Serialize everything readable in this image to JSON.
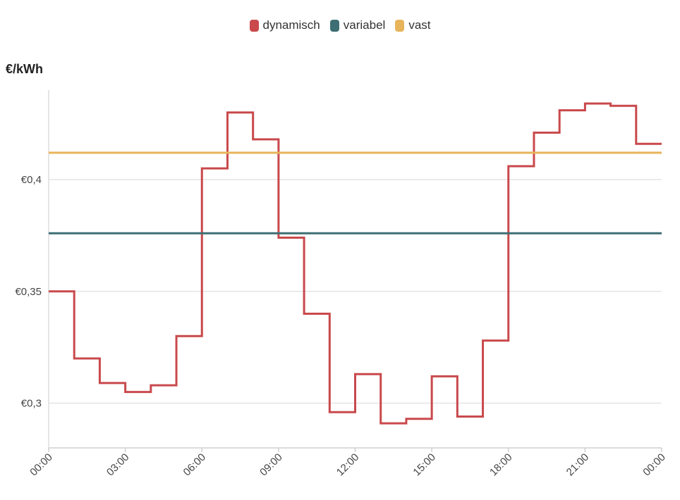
{
  "chart_data": {
    "type": "line",
    "step": true,
    "ylabel": "€/kWh",
    "ylim": [
      0.28,
      0.44
    ],
    "yticks": [
      {
        "value": 0.3,
        "label": "€0,3"
      },
      {
        "value": 0.35,
        "label": "€0,35"
      },
      {
        "value": 0.4,
        "label": "€0,4"
      }
    ],
    "xlim": [
      0,
      24
    ],
    "xticks": [
      {
        "value": 0,
        "label": "00:00"
      },
      {
        "value": 3,
        "label": "03:00"
      },
      {
        "value": 6,
        "label": "06:00"
      },
      {
        "value": 9,
        "label": "09:00"
      },
      {
        "value": 12,
        "label": "12:00"
      },
      {
        "value": 15,
        "label": "15:00"
      },
      {
        "value": 18,
        "label": "18:00"
      },
      {
        "value": 21,
        "label": "21:00"
      },
      {
        "value": 24,
        "label": "00:00"
      }
    ],
    "grid": true,
    "legend_position": "top-center",
    "series": [
      {
        "name": "dynamisch",
        "color": "#c9494c",
        "values": [
          0.35,
          0.32,
          0.309,
          0.305,
          0.308,
          0.33,
          0.405,
          0.43,
          0.418,
          0.374,
          0.34,
          0.296,
          0.313,
          0.291,
          0.293,
          0.312,
          0.294,
          0.328,
          0.406,
          0.421,
          0.431,
          0.434,
          0.433,
          0.416
        ]
      },
      {
        "name": "variabel",
        "color": "#3d6e73",
        "constant": 0.376
      },
      {
        "name": "vast",
        "color": "#e8b45a",
        "constant": 0.412
      }
    ]
  }
}
